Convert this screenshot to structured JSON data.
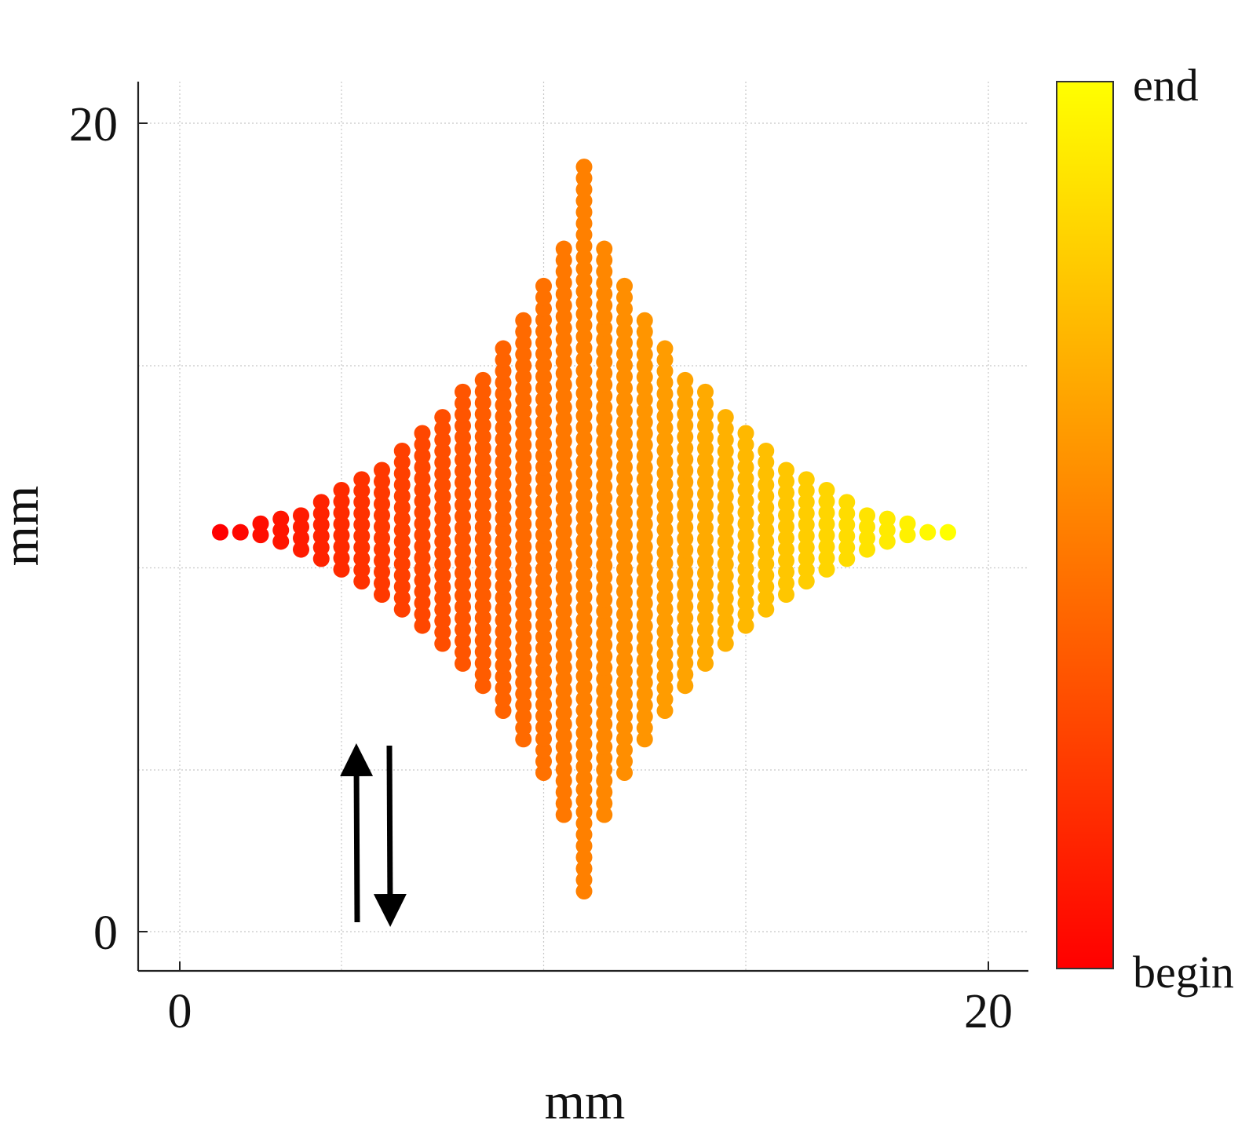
{
  "chart_data": {
    "type": "scatter",
    "xlabel": "mm",
    "ylabel": "mm",
    "xlim": [
      -1,
      21
    ],
    "ylim": [
      -1,
      21
    ],
    "xticks": [
      0,
      20
    ],
    "yticks": [
      0,
      20
    ],
    "grid": true,
    "grid_lines": [
      0,
      4,
      9,
      14,
      20
    ],
    "shape": "four-pointed star (astroid-like) filled by vertical raster scan lines",
    "star": {
      "center_x": 10,
      "center_y": 10,
      "left_tip_x": 1,
      "right_tip_x": 19,
      "top_tip_y": 19,
      "bottom_tip_y": 1,
      "scan_step": 0.5
    },
    "scan_direction": "alternating up/down columns, progressing left to right",
    "colorbar": {
      "top_label": "end",
      "bottom_label": "begin",
      "colors": [
        "#ff0000",
        "#ff8000",
        "#ffff00"
      ]
    }
  }
}
